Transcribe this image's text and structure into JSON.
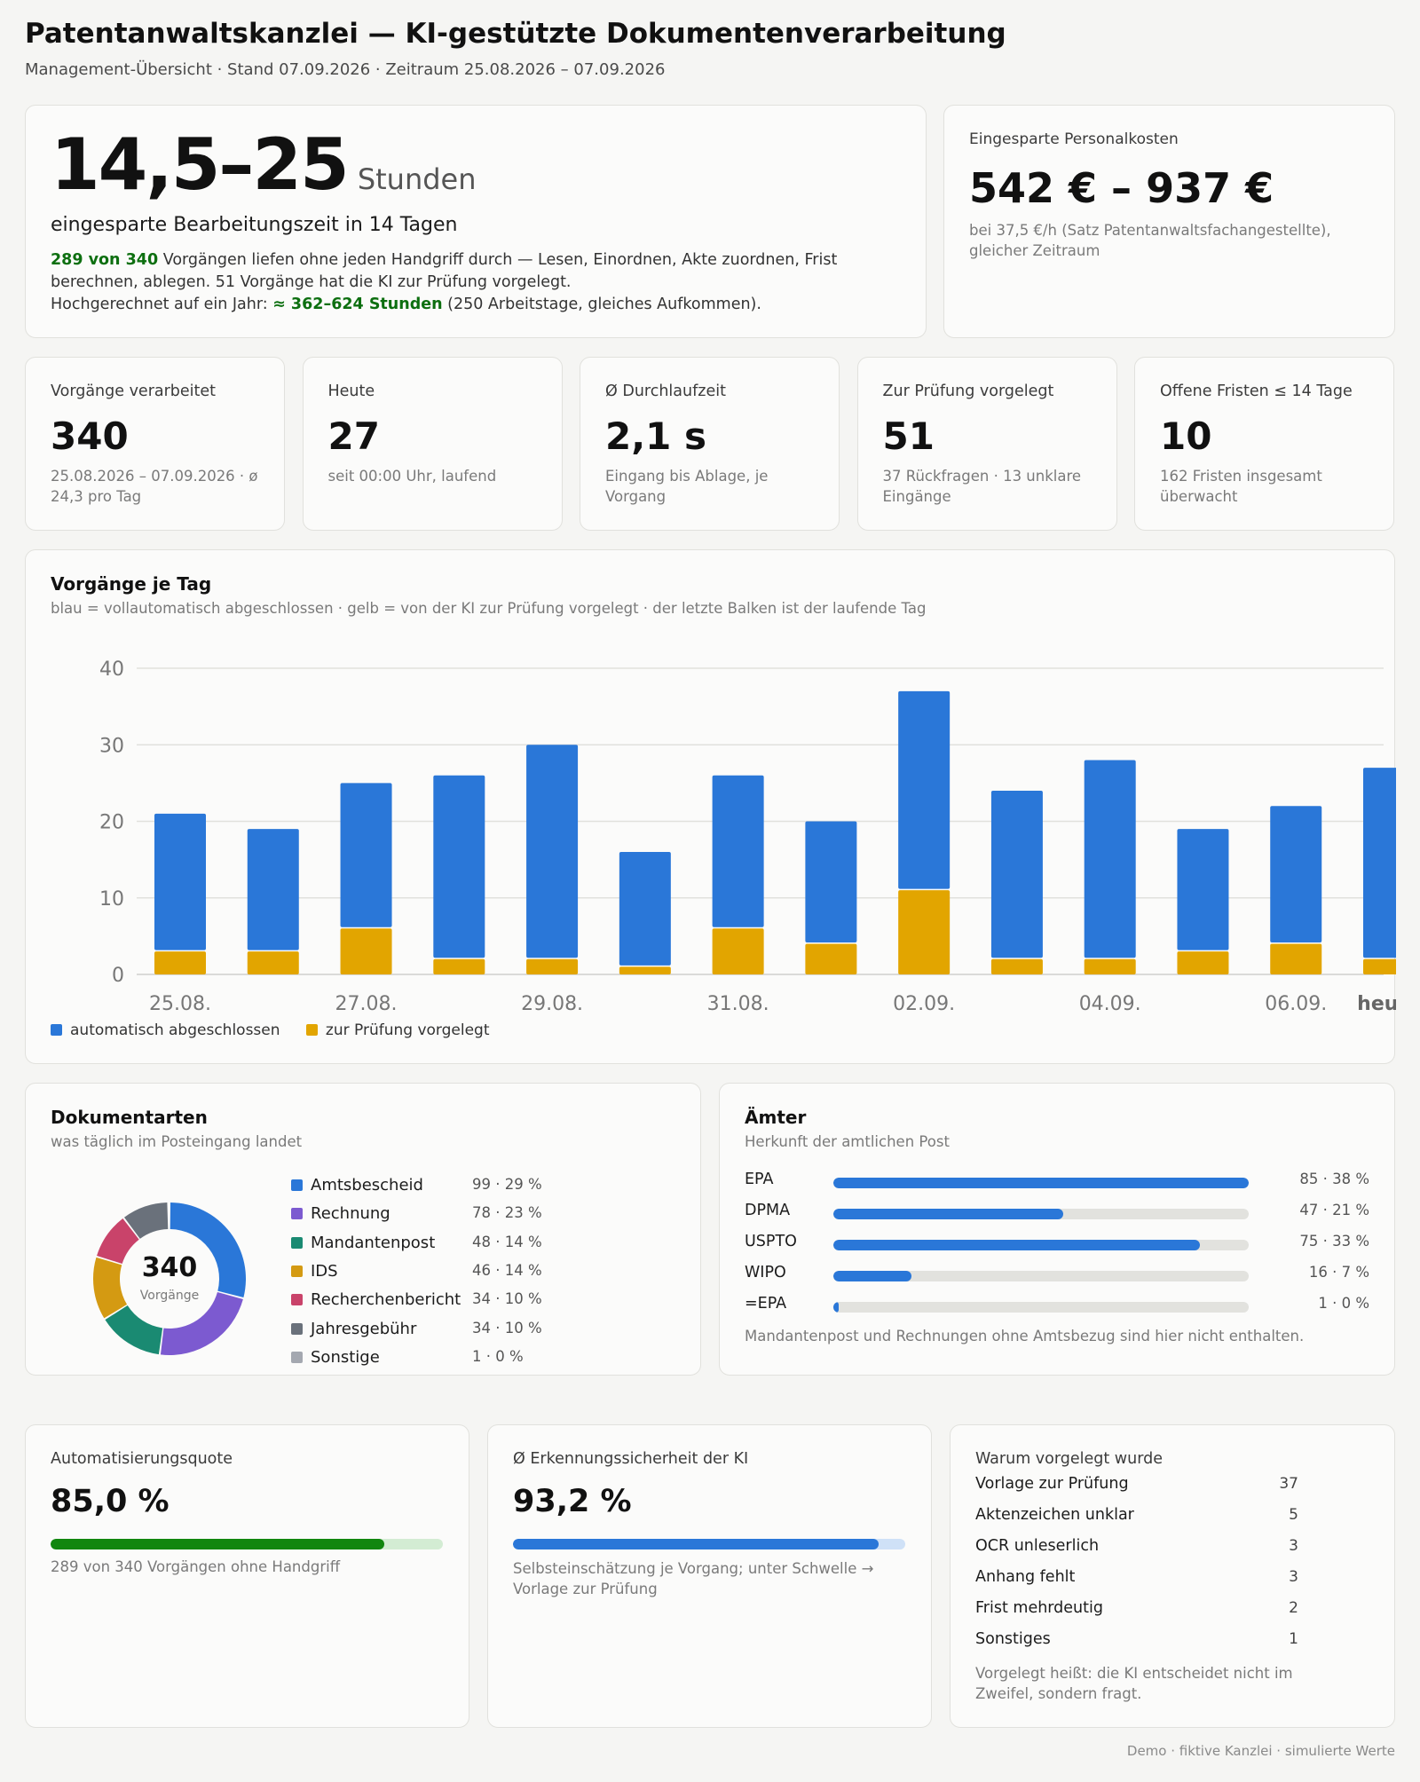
{
  "header": {
    "title": "Patentanwaltskanzlei — KI-gestützte Dokumentenverarbeitung",
    "subtitle": "Management-Übersicht · Stand 07.09.2026 · Zeitraum 25.08.2026 – 07.09.2026"
  },
  "hero": {
    "value": "14,5–25",
    "unit": "Stunden",
    "caption": "eingesparte Bearbeitungszeit in 14 Tagen",
    "line1_highlight": "289 von 340",
    "line1_rest": " Vorgängen liefen ohne jeden Handgriff durch — Lesen, Einordnen, Akte zuordnen, Frist berechnen, ablegen. 51 Vorgänge hat die KI zur Prüfung vorgelegt.",
    "line2_prefix": "Hochgerechnet auf ein Jahr: ",
    "line2_highlight": "≈ 362–624 Stunden",
    "line2_suffix": " (250 Arbeitstage, gleiches Aufkommen)."
  },
  "savings": {
    "label": "Eingesparte Personalkosten",
    "value": "542 € – 937 €",
    "note": "bei 37,5 €/h (Satz Patentanwaltsfachangestellte), gleicher Zeitraum"
  },
  "kpis": [
    {
      "label": "Vorgänge verarbeitet",
      "value": "340",
      "note": "25.08.2026 – 07.09.2026 · ø 24,3 pro Tag"
    },
    {
      "label": "Heute",
      "value": "27",
      "note": "seit 00:00 Uhr, laufend"
    },
    {
      "label": "Ø Durchlaufzeit",
      "value": "2,1 s",
      "note": "Eingang bis Ablage, je Vorgang"
    },
    {
      "label": "Zur Prüfung vorgelegt",
      "value": "51",
      "note": "37 Rückfragen · 13 unklare Eingänge"
    },
    {
      "label": "Offene Fristen ≤ 14 Tage",
      "value": "10",
      "note": "162 Fristen insgesamt überwacht"
    }
  ],
  "daily": {
    "title": "Vorgänge je Tag",
    "subtitle": "blau = vollautomatisch abgeschlossen · gelb = von der KI zur Prüfung vorgelegt · der letzte Balken ist der laufende Tag",
    "legend_auto": "automatisch abgeschlossen",
    "legend_review": "zur Prüfung vorgelegt"
  },
  "chart_data": {
    "type": "bar",
    "stacked": true,
    "title": "Vorgänge je Tag",
    "categories": [
      "25.08.",
      "26.08.",
      "27.08.",
      "28.08.",
      "29.08.",
      "30.08.",
      "31.08.",
      "01.09.",
      "02.09.",
      "03.09.",
      "04.09.",
      "05.09.",
      "06.09.",
      "heute"
    ],
    "tick_labels": [
      "25.08.",
      "",
      "27.08.",
      "",
      "29.08.",
      "",
      "31.08.",
      "",
      "02.09.",
      "",
      "04.09.",
      "",
      "06.09.",
      "heute"
    ],
    "series": [
      {
        "name": "zur Prüfung vorgelegt",
        "color": "#e2a500",
        "values": [
          3,
          3,
          6,
          2,
          2,
          1,
          6,
          4,
          11,
          2,
          2,
          3,
          4,
          2
        ]
      },
      {
        "name": "automatisch abgeschlossen",
        "color": "#2a77d8",
        "values": [
          18,
          16,
          19,
          24,
          28,
          15,
          20,
          16,
          26,
          22,
          26,
          16,
          18,
          25
        ]
      }
    ],
    "ylim": [
      0,
      40
    ],
    "yticks": [
      0,
      10,
      20,
      30,
      40
    ],
    "grid": true,
    "legend": "bottom-left"
  },
  "doctypes": {
    "title": "Dokumentarten",
    "subtitle": "was täglich im Posteingang landet",
    "center_value": "340",
    "center_label": "Vorgänge",
    "items": [
      {
        "name": "Amtsbescheid",
        "stat": "99 · 29 %",
        "value": 99,
        "color": "#2a77d8"
      },
      {
        "name": "Rechnung",
        "stat": "78 · 23 %",
        "value": 78,
        "color": "#7c5ad0"
      },
      {
        "name": "Mandantenpost",
        "stat": "48 · 14 %",
        "value": 48,
        "color": "#1a8a72"
      },
      {
        "name": "IDS",
        "stat": "46 · 14 %",
        "value": 46,
        "color": "#d49a12"
      },
      {
        "name": "Recherchenbericht",
        "stat": "34 · 10 %",
        "value": 34,
        "color": "#c9436a"
      },
      {
        "name": "Jahresgebühr",
        "stat": "34 · 10 %",
        "value": 34,
        "color": "#6a717b"
      },
      {
        "name": "Sonstige",
        "stat": "1 · 0 %",
        "value": 1,
        "color": "#a4a8b0"
      }
    ]
  },
  "offices": {
    "title": "Ämter",
    "subtitle": "Herkunft der amtlichen Post",
    "items": [
      {
        "name": "EPA",
        "stat": "85 · 38 %",
        "value": 85
      },
      {
        "name": "DPMA",
        "stat": "47 · 21 %",
        "value": 47
      },
      {
        "name": "USPTO",
        "stat": "75 · 33 %",
        "value": 75
      },
      {
        "name": "WIPO",
        "stat": "16 · 7 %",
        "value": 16
      },
      {
        "name": "=EPA",
        "stat": "1 · 0 %",
        "value": 1
      }
    ],
    "max": 85,
    "note": "Mandantenpost und Rechnungen ohne Amtsbezug sind hier nicht enthalten."
  },
  "automation": {
    "label": "Automatisierungsquote",
    "value": "85,0 %",
    "fraction": 0.85,
    "note": "289 von 340 Vorgängen ohne Handgriff"
  },
  "confidence": {
    "label": "Ø Erkennungssicherheit der KI",
    "value": "93,2 %",
    "fraction": 0.932,
    "note": "Selbsteinschätzung je Vorgang; unter Schwelle → Vorlage zur Prüfung"
  },
  "reasons": {
    "title": "Warum vorgelegt wurde",
    "items": [
      {
        "name": "Vorlage zur Prüfung",
        "count": "37"
      },
      {
        "name": "Aktenzeichen unklar",
        "count": "5"
      },
      {
        "name": "OCR unleserlich",
        "count": "3"
      },
      {
        "name": "Anhang fehlt",
        "count": "3"
      },
      {
        "name": "Frist mehrdeutig",
        "count": "2"
      },
      {
        "name": "Sonstiges",
        "count": "1"
      }
    ],
    "note": "Vorgelegt heißt: die KI entscheidet nicht im Zweifel, sondern fragt."
  },
  "footer": "Demo · fiktive Kanzlei · simulierte Werte"
}
